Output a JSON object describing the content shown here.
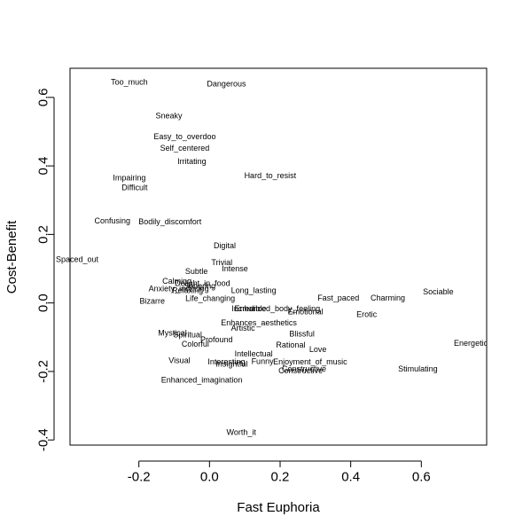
{
  "chart_data": {
    "type": "scatter",
    "title": "",
    "xlabel": "Fast Euphoria",
    "ylabel": "Cost-Benefit",
    "xlim": [
      -0.395,
      0.785
    ],
    "ylim": [
      -0.415,
      0.685
    ],
    "xticks": [
      -0.2,
      0.0,
      0.2,
      0.4,
      0.6
    ],
    "xtick_labels": [
      "-0.2",
      "0.0",
      "0.2",
      "0.4",
      "0.6"
    ],
    "yticks": [
      -0.4,
      -0.2,
      0.0,
      0.2,
      0.4,
      0.6
    ],
    "ytick_labels": [
      "-0.4",
      "-0.2",
      "0.0",
      "0.2",
      "0.4",
      "0.6"
    ],
    "grid": false,
    "legend": "none",
    "points": [
      {
        "label": "Too_much",
        "x": -0.227,
        "y": 0.645
      },
      {
        "label": "Dangerous",
        "x": 0.048,
        "y": 0.64
      },
      {
        "label": "Sneaky",
        "x": -0.115,
        "y": 0.547
      },
      {
        "label": "Easy_to_overdoo",
        "x": -0.07,
        "y": 0.486
      },
      {
        "label": "Self_centered",
        "x": -0.07,
        "y": 0.452
      },
      {
        "label": "Irritating",
        "x": -0.05,
        "y": 0.413
      },
      {
        "label": "Hard_to_resist",
        "x": 0.172,
        "y": 0.372
      },
      {
        "label": "Impairing",
        "x": -0.227,
        "y": 0.365
      },
      {
        "label": "Difficult",
        "x": -0.212,
        "y": 0.337
      },
      {
        "label": "Confusing",
        "x": -0.275,
        "y": 0.24
      },
      {
        "label": "Bodily_discomfort",
        "x": -0.112,
        "y": 0.237
      },
      {
        "label": "Digital",
        "x": 0.043,
        "y": 0.168
      },
      {
        "label": "Spaced_out",
        "x": -0.375,
        "y": 0.127
      },
      {
        "label": "Trivial",
        "x": 0.035,
        "y": 0.118
      },
      {
        "label": "Intense",
        "x": 0.072,
        "y": 0.1
      },
      {
        "label": "Subtle",
        "x": -0.037,
        "y": 0.092
      },
      {
        "label": "Calming",
        "x": -0.092,
        "y": 0.064
      },
      {
        "label": "Delight_in_food",
        "x": -0.02,
        "y": 0.058
      },
      {
        "label": "Sobering",
        "x": -0.028,
        "y": 0.05
      },
      {
        "label": "Anxiety_inducing",
        "x": -0.087,
        "y": 0.042
      },
      {
        "label": "Relaxing",
        "x": -0.062,
        "y": 0.037
      },
      {
        "label": "Long_lasting",
        "x": 0.125,
        "y": 0.037
      },
      {
        "label": "Life_changing",
        "x": 0.002,
        "y": 0.013
      },
      {
        "label": "Bizarre",
        "x": -0.162,
        "y": 0.005
      },
      {
        "label": "Incredible",
        "x": 0.112,
        "y": -0.017
      },
      {
        "label": "Enhanced_body_feeling",
        "x": 0.192,
        "y": -0.017
      },
      {
        "label": "Emotional",
        "x": 0.272,
        "y": -0.025
      },
      {
        "label": "Fast_paced",
        "x": 0.365,
        "y": 0.015
      },
      {
        "label": "Charming",
        "x": 0.505,
        "y": 0.015
      },
      {
        "label": "Sociable",
        "x": 0.648,
        "y": 0.033
      },
      {
        "label": "Erotic",
        "x": 0.445,
        "y": -0.033
      },
      {
        "label": "Enhances_aesthetics",
        "x": 0.14,
        "y": -0.058
      },
      {
        "label": "Artistic",
        "x": 0.095,
        "y": -0.073
      },
      {
        "label": "Mystical",
        "x": -0.105,
        "y": -0.088
      },
      {
        "label": "Spiritual",
        "x": -0.062,
        "y": -0.093
      },
      {
        "label": "Blissful",
        "x": 0.262,
        "y": -0.09
      },
      {
        "label": "Profound",
        "x": 0.02,
        "y": -0.107
      },
      {
        "label": "Colorful",
        "x": -0.04,
        "y": -0.12
      },
      {
        "label": "Rational",
        "x": 0.23,
        "y": -0.123
      },
      {
        "label": "Love",
        "x": 0.307,
        "y": -0.135
      },
      {
        "label": "Energetic",
        "x": 0.74,
        "y": -0.117
      },
      {
        "label": "Intellectual",
        "x": 0.125,
        "y": -0.148
      },
      {
        "label": "Visual",
        "x": -0.085,
        "y": -0.168
      },
      {
        "label": "Interesting",
        "x": 0.048,
        "y": -0.172
      },
      {
        "label": "Funny",
        "x": 0.15,
        "y": -0.17
      },
      {
        "label": "Insightful",
        "x": 0.063,
        "y": -0.178
      },
      {
        "label": "Enjoyment_of_music",
        "x": 0.285,
        "y": -0.172
      },
      {
        "label": "Constructive",
        "x": 0.268,
        "y": -0.192
      },
      {
        "label": "Constructive",
        "x": 0.258,
        "y": -0.198
      },
      {
        "label": "Stimulating",
        "x": 0.59,
        "y": -0.193
      },
      {
        "label": "Enhanced_imagination",
        "x": -0.022,
        "y": -0.225
      },
      {
        "label": "Worth_it",
        "x": 0.09,
        "y": -0.378
      }
    ]
  }
}
